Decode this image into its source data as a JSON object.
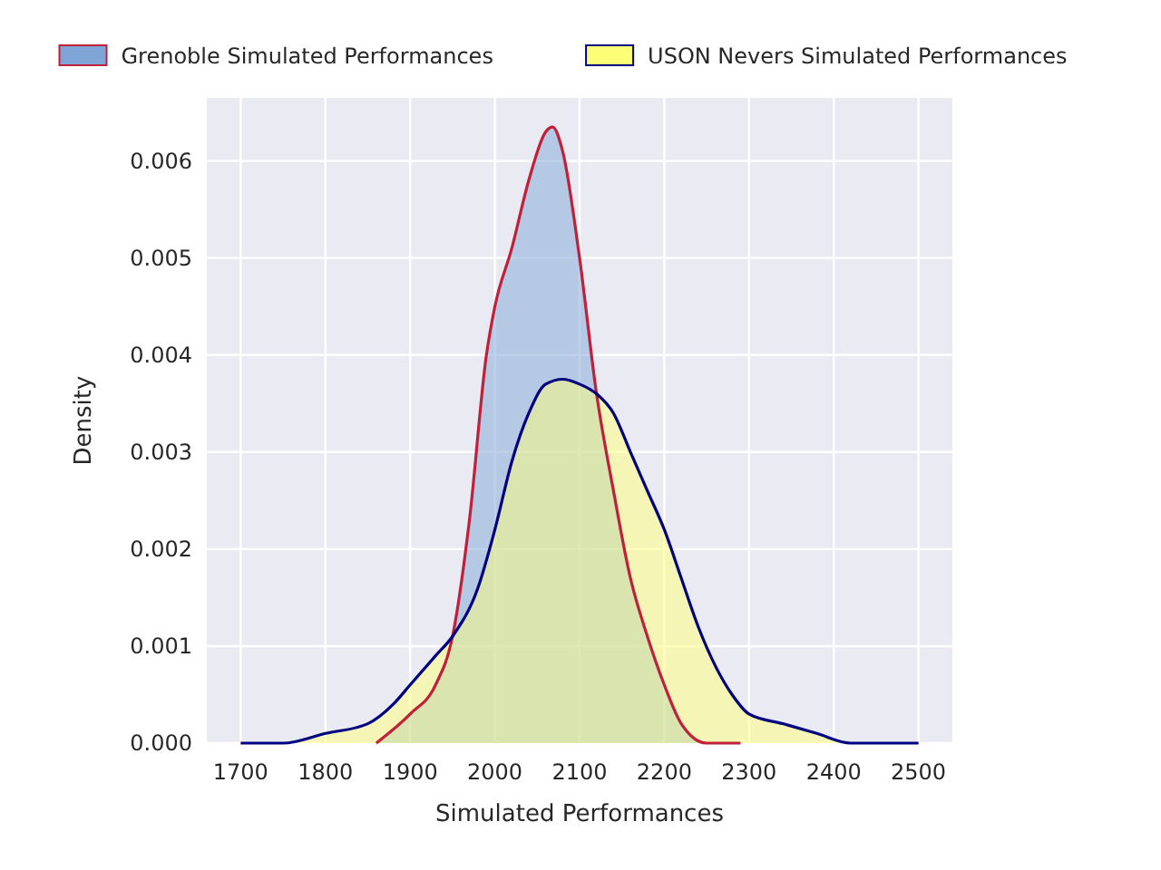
{
  "chart_data": {
    "type": "area",
    "xlabel": "Simulated Performances",
    "ylabel": "Density",
    "xlim": [
      1660,
      2540
    ],
    "ylim": [
      0,
      0.00665
    ],
    "xticks": [
      1700,
      1800,
      1900,
      2000,
      2100,
      2200,
      2300,
      2400,
      2500
    ],
    "yticks": [
      {
        "value": 0,
        "label": "0.000"
      },
      {
        "value": 0.001,
        "label": "0.001"
      },
      {
        "value": 0.002,
        "label": "0.002"
      },
      {
        "value": 0.003,
        "label": "0.003"
      },
      {
        "value": 0.004,
        "label": "0.004"
      },
      {
        "value": 0.005,
        "label": "0.005"
      },
      {
        "value": 0.006,
        "label": "0.006"
      }
    ],
    "grid": true,
    "legend": "top",
    "line_style": "solid",
    "series": [
      {
        "name": "Grenoble Simulated Performances",
        "color": "#7fa5d6",
        "x": [
          1860,
          1900,
          1930,
          1950,
          1970,
          1990,
          2000,
          2020,
          2040,
          2060,
          2068,
          2080,
          2100,
          2120,
          2140,
          2160,
          2180,
          2200,
          2220,
          2250,
          2290
        ],
        "values": [
          0,
          0.0003,
          0.0006,
          0.0011,
          0.0023,
          0.004,
          0.0045,
          0.0051,
          0.0058,
          0.0063,
          0.00635,
          0.0061,
          0.005,
          0.0036,
          0.0026,
          0.0017,
          0.0011,
          0.0006,
          0.0002,
          0,
          0
        ]
      },
      {
        "name": "USON Nevers Simulated Performances",
        "color": "#ffff77",
        "x": [
          1700,
          1750,
          1800,
          1850,
          1880,
          1900,
          1930,
          1950,
          1980,
          2000,
          2020,
          2040,
          2060,
          2080,
          2100,
          2120,
          2140,
          2160,
          2180,
          2200,
          2220,
          2240,
          2260,
          2280,
          2300,
          2340,
          2380,
          2420,
          2460,
          2500
        ],
        "values": [
          0,
          0,
          0.0001,
          0.0002,
          0.0004,
          0.0006,
          0.0009,
          0.0011,
          0.0016,
          0.0022,
          0.0029,
          0.0034,
          0.0037,
          0.00375,
          0.0037,
          0.0036,
          0.0034,
          0.003,
          0.0026,
          0.0022,
          0.0017,
          0.0012,
          0.0008,
          0.0005,
          0.0003,
          0.0002,
          0.0001,
          0,
          0,
          0
        ]
      }
    ]
  }
}
